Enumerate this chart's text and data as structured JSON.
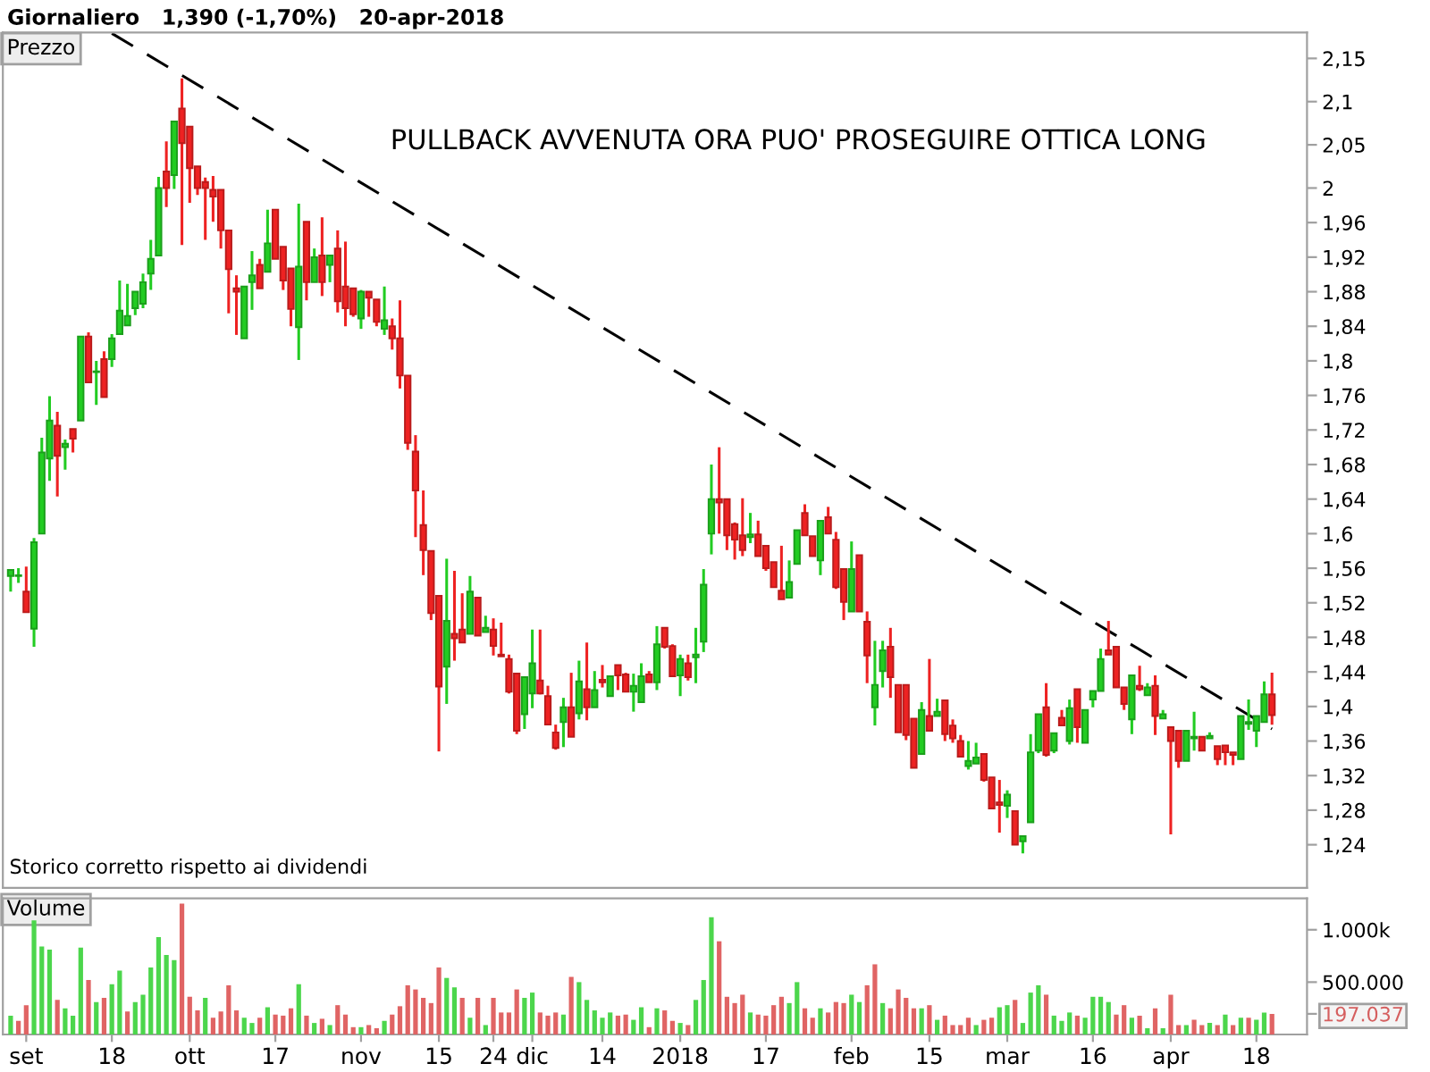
{
  "chart_data": [
    {
      "type": "candlestick",
      "title": "Giornaliero   1,390 (-1,70%)   20-apr-2018",
      "ylabel": "Prezzo",
      "tick_labels": "y",
      "annotations": [
        "PULLBACK AVVENUTA ORA PUO' PROSEGUIRE OTTICA LONG",
        "Storico corretto rispetto ai dividendi"
      ],
      "categories": [
        null,
        null,
        null,
        null,
        null,
        null,
        null,
        null,
        null,
        null,
        null,
        null,
        null,
        null,
        null,
        null,
        null,
        null,
        null,
        null,
        null,
        null,
        null,
        null,
        null,
        null,
        null,
        null,
        null,
        null,
        null,
        null,
        null,
        null,
        null,
        null,
        null,
        null,
        null,
        null,
        null,
        null,
        null,
        null,
        null,
        null,
        null,
        null,
        null,
        null,
        null,
        null,
        null,
        null,
        null,
        null,
        null,
        null,
        null,
        null,
        null,
        null,
        null,
        null,
        null,
        null,
        null,
        null,
        null,
        null,
        null,
        null,
        null,
        null,
        null,
        null,
        null,
        null,
        null,
        null,
        null,
        null,
        null,
        null,
        null,
        null,
        null,
        null,
        null,
        null,
        null,
        null,
        null,
        null,
        null,
        null,
        null,
        null,
        null,
        null,
        null,
        null,
        null,
        null,
        null,
        null,
        null,
        null,
        null,
        null,
        null,
        null,
        null,
        null,
        null,
        null,
        null,
        null,
        null,
        null,
        null,
        null,
        null,
        null,
        null,
        null,
        null,
        null,
        null,
        null,
        null,
        null,
        null,
        null,
        null,
        null,
        null,
        null,
        null,
        null,
        null,
        null,
        null,
        null,
        null,
        null,
        null,
        null,
        null,
        null,
        null,
        null,
        null,
        null,
        null,
        null,
        null,
        null,
        null,
        null,
        null,
        null,
        null
      ],
      "ylim": [
        1.19,
        2.18
      ],
      "yticks": [
        {
          "value": 1.24,
          "label": "1,24"
        },
        {
          "value": 1.28,
          "label": "1,28"
        },
        {
          "value": 1.32,
          "label": "1,32"
        },
        {
          "value": 1.36,
          "label": "1,36"
        },
        {
          "value": 1.4,
          "label": "1,4"
        },
        {
          "value": 1.44,
          "label": "1,44"
        },
        {
          "value": 1.48,
          "label": "1,48"
        },
        {
          "value": 1.52,
          "label": "1,52"
        },
        {
          "value": 1.56,
          "label": "1,56"
        },
        {
          "value": 1.6,
          "label": "1,6"
        },
        {
          "value": 1.64,
          "label": "1,64"
        },
        {
          "value": 1.68,
          "label": "1,68"
        },
        {
          "value": 1.72,
          "label": "1,72"
        },
        {
          "value": 1.76,
          "label": "1,76"
        },
        {
          "value": 1.8,
          "label": "1,8"
        },
        {
          "value": 1.84,
          "label": "1,84"
        },
        {
          "value": 1.88,
          "label": "1,88"
        },
        {
          "value": 1.92,
          "label": "1,92"
        },
        {
          "value": 1.96,
          "label": "1,96"
        },
        2,
        {
          "value": 2.05,
          "label": "2,05"
        },
        {
          "value": 2.1,
          "label": "2,1"
        },
        {
          "value": 2.15,
          "label": "2,15"
        }
      ],
      "series": [
        {
          "type": "candlestick",
          "colors": [
            "#22cc22",
            "#22cc22",
            "#ee2222",
            "#22cc22",
            "#22cc22",
            "#22cc22",
            "#ee2222",
            "#22cc22",
            "#ee2222",
            "#22cc22",
            "#ee2222",
            "#22cc22",
            "#ee2222",
            "#22cc22",
            "#22cc22",
            "#22cc22",
            "#22cc22",
            "#22cc22",
            "#22cc22",
            "#22cc22",
            "#ee2222",
            "#22cc22",
            "#ee2222",
            "#ee2222",
            "#ee2222",
            "#ee2222",
            "#ee2222",
            "#ee2222",
            "#ee2222",
            "#ee2222",
            "#22cc22",
            "#22cc22",
            "#ee2222",
            "#22cc22",
            "#ee2222",
            "#ee2222",
            "#ee2222",
            "#22cc22",
            "#ee2222",
            "#22cc22",
            "#ee2222",
            "#22cc22",
            "#ee2222",
            "#ee2222",
            "#ee2222",
            "#22cc22",
            "#ee2222",
            "#ee2222",
            "#22cc22",
            "#ee2222",
            "#ee2222",
            "#ee2222",
            "#ee2222",
            "#ee2222",
            "#ee2222",
            "#ee2222",
            "#22cc22",
            "#ee2222",
            "#ee2222",
            "#22cc22",
            "#ee2222",
            "#22cc22",
            "#ee2222",
            "#ee2222",
            "#ee2222",
            "#ee2222",
            "#22cc22",
            "#22cc22",
            "#ee2222",
            "#ee2222",
            "#ee2222",
            "#22cc22",
            "#ee2222",
            "#22cc22",
            "#ee2222",
            "#22cc22",
            "#ee2222",
            "#22cc22",
            "#ee2222",
            "#ee2222",
            "#22cc22",
            "#22cc22",
            "#ee2222",
            "#22cc22",
            "#ee2222",
            "#ee2222",
            "#22cc22",
            "#ee2222",
            "#22cc22",
            "#22cc22",
            "#22cc22",
            "#ee2222",
            "#ee2222",
            "#ee2222",
            "#ee2222",
            "#22cc22",
            "#ee2222",
            "#ee2222",
            "#ee2222",
            "#ee2222",
            "#22cc22",
            "#22cc22",
            "#ee2222",
            "#ee2222",
            "#22cc22",
            "#ee2222",
            "#ee2222",
            "#ee2222",
            "#22cc22",
            "#ee2222",
            "#ee2222",
            "#22cc22",
            "#22cc22",
            "#ee2222",
            "#ee2222",
            "#ee2222",
            "#ee2222",
            "#22cc22",
            "#ee2222",
            "#22cc22",
            "#ee2222",
            "#ee2222",
            "#ee2222",
            "#22cc22",
            "#22cc22",
            "#ee2222",
            "#ee2222",
            "#ee2222",
            "#22cc22",
            "#ee2222",
            "#22cc22",
            "#22cc22",
            "#22cc22",
            "#ee2222",
            "#22cc22",
            "#ee2222",
            "#22cc22",
            "#ee2222",
            "#22cc22",
            "#22cc22",
            "#22cc22",
            "#ee2222",
            "#ee2222",
            "#ee2222",
            "#22cc22",
            "#ee2222",
            "#22cc22",
            "#ee2222",
            "#22cc22",
            "#ee2222",
            "#ee2222",
            "#22cc22",
            "#22cc22",
            "#ee2222",
            "#22cc22",
            "#ee2222",
            "#ee2222",
            "#ee2222",
            "#22cc22",
            "#22cc22",
            "#22cc22",
            "#22cc22",
            "#ee2222"
          ],
          "ohlc": [
            [
              1.551,
              1.558,
              1.533,
              1.558
            ],
            [
              1.551,
              1.56,
              1.543,
              1.551
            ],
            [
              1.533,
              1.562,
              1.509,
              1.509
            ],
            [
              1.49,
              1.595,
              1.469,
              1.59
            ],
            [
              1.6,
              1.711,
              1.6,
              1.694
            ],
            [
              1.687,
              1.759,
              1.661,
              1.731
            ],
            [
              1.725,
              1.741,
              1.643,
              1.69
            ],
            [
              1.7,
              1.709,
              1.674,
              1.704
            ],
            [
              1.721,
              1.721,
              1.694,
              1.71
            ],
            [
              1.731,
              1.828,
              1.731,
              1.828
            ],
            [
              1.828,
              1.833,
              1.775,
              1.775
            ],
            [
              1.787,
              1.8,
              1.749,
              1.787
            ],
            [
              1.802,
              1.811,
              1.758,
              1.758
            ],
            [
              1.802,
              1.831,
              1.793,
              1.826
            ],
            [
              1.831,
              1.893,
              1.831,
              1.858
            ],
            [
              1.841,
              1.889,
              1.841,
              1.852
            ],
            [
              1.861,
              1.88,
              1.853,
              1.88
            ],
            [
              1.866,
              1.901,
              1.861,
              1.891
            ],
            [
              1.901,
              1.94,
              1.882,
              1.918
            ],
            [
              1.922,
              2.013,
              1.922,
              2.0
            ],
            [
              2.019,
              2.054,
              1.978,
              2.0
            ],
            [
              2.015,
              2.077,
              1.999,
              2.077
            ],
            [
              2.092,
              2.127,
              1.934,
              2.052
            ],
            [
              2.071,
              2.071,
              1.983,
              2.023
            ],
            [
              2.025,
              2.025,
              1.992,
              2.0
            ],
            [
              2.007,
              2.012,
              1.94,
              2.0
            ],
            [
              1.998,
              2.014,
              1.961,
              1.99
            ],
            [
              1.998,
              1.998,
              1.93,
              1.951
            ],
            [
              1.951,
              1.951,
              1.855,
              1.906
            ],
            [
              1.884,
              1.899,
              1.83,
              1.88
            ],
            [
              1.826,
              1.886,
              1.826,
              1.886
            ],
            [
              1.891,
              1.927,
              1.859,
              1.899
            ],
            [
              1.911,
              1.918,
              1.884,
              1.884
            ],
            [
              1.903,
              1.975,
              1.903,
              1.936
            ],
            [
              1.975,
              1.975,
              1.918,
              1.918
            ],
            [
              1.932,
              1.932,
              1.882,
              1.893
            ],
            [
              1.907,
              1.907,
              1.84,
              1.86
            ],
            [
              1.839,
              1.982,
              1.801,
              1.909
            ],
            [
              1.961,
              1.961,
              1.87,
              1.891
            ],
            [
              1.891,
              1.93,
              1.891,
              1.92
            ],
            [
              1.922,
              1.966,
              1.875,
              1.891
            ],
            [
              1.911,
              1.922,
              1.891,
              1.922
            ],
            [
              1.93,
              1.951,
              1.856,
              1.869
            ],
            [
              1.886,
              1.938,
              1.84,
              1.861
            ],
            [
              1.884,
              1.884,
              1.851,
              1.854
            ],
            [
              1.849,
              1.882,
              1.837,
              1.88
            ],
            [
              1.88,
              1.88,
              1.851,
              1.873
            ],
            [
              1.871,
              1.871,
              1.84,
              1.845
            ],
            [
              1.837,
              1.886,
              1.83,
              1.847
            ],
            [
              1.84,
              1.849,
              1.813,
              1.826
            ],
            [
              1.826,
              1.87,
              1.768,
              1.783
            ],
            [
              1.783,
              1.783,
              1.697,
              1.705
            ],
            [
              1.695,
              1.714,
              1.596,
              1.65
            ],
            [
              1.61,
              1.65,
              1.552,
              1.581
            ],
            [
              1.58,
              1.58,
              1.5,
              1.508
            ],
            [
              1.528,
              1.528,
              1.348,
              1.423
            ],
            [
              1.446,
              1.571,
              1.403,
              1.499
            ],
            [
              1.484,
              1.557,
              1.453,
              1.479
            ],
            [
              1.489,
              1.531,
              1.474,
              1.474
            ],
            [
              1.484,
              1.551,
              1.484,
              1.533
            ],
            [
              1.526,
              1.526,
              1.482,
              1.482
            ],
            [
              1.486,
              1.505,
              1.486,
              1.491
            ],
            [
              1.489,
              1.502,
              1.459,
              1.47
            ],
            [
              1.46,
              1.497,
              1.458,
              1.458
            ],
            [
              1.455,
              1.46,
              1.415,
              1.417
            ],
            [
              1.438,
              1.438,
              1.368,
              1.372
            ],
            [
              1.391,
              1.434,
              1.374,
              1.434
            ],
            [
              1.415,
              1.489,
              1.398,
              1.45
            ],
            [
              1.43,
              1.489,
              1.414,
              1.415
            ],
            [
              1.412,
              1.424,
              1.379,
              1.379
            ],
            [
              1.37,
              1.379,
              1.35,
              1.352
            ],
            [
              1.382,
              1.41,
              1.353,
              1.399
            ],
            [
              1.399,
              1.439,
              1.365,
              1.365
            ],
            [
              1.392,
              1.453,
              1.385,
              1.429
            ],
            [
              1.42,
              1.474,
              1.384,
              1.399
            ],
            [
              1.399,
              1.441,
              1.399,
              1.419
            ],
            [
              1.431,
              1.448,
              1.422,
              1.428
            ],
            [
              1.412,
              1.435,
              1.412,
              1.435
            ],
            [
              1.448,
              1.448,
              1.419,
              1.436
            ],
            [
              1.437,
              1.439,
              1.417,
              1.417
            ],
            [
              1.417,
              1.438,
              1.394,
              1.424
            ],
            [
              1.405,
              1.45,
              1.405,
              1.435
            ],
            [
              1.437,
              1.441,
              1.428,
              1.428
            ],
            [
              1.428,
              1.493,
              1.419,
              1.472
            ],
            [
              1.491,
              1.491,
              1.467,
              1.469
            ],
            [
              1.47,
              1.472,
              1.435,
              1.435
            ],
            [
              1.436,
              1.46,
              1.412,
              1.455
            ],
            [
              1.45,
              1.46,
              1.43,
              1.434
            ],
            [
              1.457,
              1.491,
              1.427,
              1.46
            ],
            [
              1.475,
              1.559,
              1.463,
              1.541
            ],
            [
              1.6,
              1.68,
              1.576,
              1.64
            ],
            [
              1.64,
              1.7,
              1.6,
              1.636
            ],
            [
              1.64,
              1.64,
              1.581,
              1.598
            ],
            [
              1.611,
              1.613,
              1.57,
              1.593
            ],
            [
              1.598,
              1.641,
              1.574,
              1.581
            ],
            [
              1.596,
              1.624,
              1.589,
              1.599
            ],
            [
              1.599,
              1.615,
              1.574,
              1.574
            ],
            [
              1.586,
              1.586,
              1.557,
              1.56
            ],
            [
              1.567,
              1.567,
              1.538,
              1.538
            ],
            [
              1.534,
              1.586,
              1.524,
              1.524
            ],
            [
              1.526,
              1.569,
              1.526,
              1.544
            ],
            [
              1.565,
              1.604,
              1.565,
              1.604
            ],
            [
              1.624,
              1.634,
              1.598,
              1.598
            ],
            [
              1.597,
              1.597,
              1.574,
              1.574
            ],
            [
              1.569,
              1.615,
              1.552,
              1.615
            ],
            [
              1.619,
              1.631,
              1.6,
              1.6
            ],
            [
              1.593,
              1.602,
              1.536,
              1.538
            ],
            [
              1.559,
              1.559,
              1.5,
              1.521
            ],
            [
              1.51,
              1.591,
              1.51,
              1.559
            ],
            [
              1.575,
              1.575,
              1.51,
              1.51
            ],
            [
              1.498,
              1.51,
              1.427,
              1.459
            ],
            [
              1.399,
              1.476,
              1.378,
              1.425
            ],
            [
              1.441,
              1.476,
              1.422,
              1.465
            ],
            [
              1.469,
              1.491,
              1.41,
              1.434
            ],
            [
              1.425,
              1.425,
              1.37,
              1.37
            ],
            [
              1.425,
              1.425,
              1.361,
              1.367
            ],
            [
              1.386,
              1.386,
              1.329,
              1.329
            ],
            [
              1.345,
              1.405,
              1.345,
              1.396
            ],
            [
              1.389,
              1.455,
              1.372,
              1.372
            ],
            [
              1.389,
              1.409,
              1.389,
              1.394
            ],
            [
              1.407,
              1.407,
              1.36,
              1.368
            ],
            [
              1.378,
              1.385,
              1.358,
              1.363
            ],
            [
              1.36,
              1.367,
              1.342,
              1.342
            ],
            [
              1.331,
              1.36,
              1.327,
              1.337
            ],
            [
              1.334,
              1.358,
              1.334,
              1.341
            ],
            [
              1.345,
              1.345,
              1.313,
              1.315
            ],
            [
              1.318,
              1.318,
              1.282,
              1.282
            ],
            [
              1.289,
              1.315,
              1.254,
              1.286
            ],
            [
              1.285,
              1.303,
              1.271,
              1.298
            ],
            [
              1.279,
              1.279,
              1.24,
              1.24
            ],
            [
              1.244,
              1.25,
              1.23,
              1.25
            ],
            [
              1.266,
              1.368,
              1.266,
              1.347
            ],
            [
              1.349,
              1.391,
              1.346,
              1.391
            ],
            [
              1.399,
              1.427,
              1.342,
              1.344
            ],
            [
              1.349,
              1.369,
              1.346,
              1.369
            ],
            [
              1.387,
              1.396,
              1.378,
              1.378
            ],
            [
              1.36,
              1.408,
              1.356,
              1.398
            ],
            [
              1.42,
              1.42,
              1.358,
              1.376
            ],
            [
              1.358,
              1.396,
              1.358,
              1.396
            ],
            [
              1.408,
              1.418,
              1.399,
              1.418
            ],
            [
              1.418,
              1.467,
              1.418,
              1.455
            ],
            [
              1.465,
              1.499,
              1.46,
              1.46
            ],
            [
              1.469,
              1.469,
              1.422,
              1.422
            ],
            [
              1.422,
              1.422,
              1.396,
              1.403
            ],
            [
              1.385,
              1.436,
              1.368,
              1.436
            ],
            [
              1.424,
              1.447,
              1.418,
              1.42
            ],
            [
              1.413,
              1.427,
              1.413,
              1.422
            ],
            [
              1.424,
              1.436,
              1.367,
              1.389
            ],
            [
              1.386,
              1.396,
              1.386,
              1.391
            ],
            [
              1.376,
              1.376,
              1.252,
              1.36
            ],
            [
              1.372,
              1.372,
              1.329,
              1.337
            ],
            [
              1.337,
              1.372,
              1.337,
              1.372
            ],
            [
              1.363,
              1.394,
              1.349,
              1.365
            ],
            [
              1.365,
              1.365,
              1.349,
              1.349
            ],
            [
              1.363,
              1.37,
              1.363,
              1.366
            ],
            [
              1.354,
              1.354,
              1.332,
              1.339
            ],
            [
              1.355,
              1.355,
              1.332,
              1.347
            ],
            [
              1.347,
              1.347,
              1.332,
              1.344
            ],
            [
              1.339,
              1.389,
              1.339,
              1.389
            ],
            [
              1.38,
              1.408,
              1.373,
              1.382
            ],
            [
              1.372,
              1.389,
              1.353,
              1.389
            ],
            [
              1.382,
              1.429,
              1.382,
              1.414
            ],
            [
              1.414,
              1.439,
              1.379,
              1.39
            ]
          ]
        },
        {
          "type": "line",
          "color": "#000000",
          "line_style": "dashed",
          "values": [
            null,
            null,
            null,
            null,
            null,
            null,
            null,
            null,
            null,
            null,
            null,
            null,
            null,
            2.179,
            null,
            null,
            null,
            null,
            null,
            null,
            null,
            null,
            null,
            null,
            null,
            null,
            null,
            null,
            null,
            null,
            null,
            null,
            null,
            null,
            null,
            null,
            null,
            null,
            null,
            null,
            null,
            null,
            null,
            null,
            null,
            null,
            null,
            null,
            null,
            null,
            null,
            null,
            null,
            null,
            null,
            null,
            null,
            null,
            null,
            null,
            null,
            null,
            null,
            null,
            null,
            null,
            null,
            null,
            null,
            null,
            null,
            null,
            null,
            null,
            null,
            null,
            null,
            null,
            null,
            null,
            null,
            null,
            null,
            null,
            null,
            null,
            null,
            null,
            null,
            null,
            null,
            null,
            null,
            null,
            null,
            null,
            null,
            null,
            null,
            null,
            null,
            null,
            null,
            null,
            null,
            null,
            null,
            null,
            null,
            null,
            null,
            null,
            null,
            null,
            null,
            null,
            null,
            null,
            null,
            null,
            null,
            null,
            null,
            null,
            null,
            null,
            null,
            null,
            null,
            null,
            null,
            null,
            null,
            null,
            null,
            null,
            null,
            null,
            null,
            null,
            null,
            null,
            null,
            null,
            null,
            null,
            null,
            null,
            null,
            null,
            null,
            null,
            null,
            null,
            null,
            null,
            null,
            null,
            null,
            null,
            null,
            null,
            1.374
          ]
        }
      ]
    },
    {
      "type": "bar",
      "ylabel": "Volume",
      "categories": [
        null,
        null,
        "set",
        null,
        null,
        null,
        null,
        null,
        null,
        null,
        null,
        null,
        null,
        "18",
        null,
        null,
        null,
        null,
        null,
        null,
        null,
        null,
        null,
        "ott",
        null,
        null,
        null,
        null,
        null,
        null,
        null,
        null,
        null,
        null,
        "17",
        null,
        null,
        null,
        null,
        null,
        null,
        null,
        null,
        null,
        null,
        "nov",
        null,
        null,
        null,
        null,
        null,
        null,
        null,
        null,
        null,
        "15",
        null,
        null,
        null,
        null,
        null,
        null,
        "24",
        null,
        null,
        null,
        null,
        "dic",
        null,
        null,
        null,
        null,
        null,
        null,
        null,
        null,
        "14",
        null,
        null,
        null,
        null,
        null,
        null,
        null,
        null,
        null,
        "2018",
        null,
        null,
        null,
        null,
        null,
        null,
        null,
        null,
        null,
        null,
        "17",
        null,
        null,
        null,
        null,
        null,
        null,
        null,
        null,
        null,
        null,
        "feb",
        null,
        null,
        null,
        null,
        null,
        null,
        null,
        null,
        null,
        "15",
        null,
        null,
        null,
        null,
        null,
        null,
        null,
        null,
        null,
        "mar",
        null,
        null,
        null,
        null,
        null,
        null,
        null,
        null,
        null,
        null,
        "16",
        null,
        null,
        null,
        null,
        null,
        null,
        null,
        null,
        null,
        "apr",
        null,
        null,
        null,
        null,
        null,
        null,
        null,
        null,
        null,
        null,
        "18",
        null,
        null
      ],
      "ylim": [
        0,
        1300000
      ],
      "yticks": [
        {
          "value": 197037,
          "label": "197.037"
        },
        {
          "value": 500000,
          "label": "500.000"
        },
        {
          "value": 1000000,
          "label": "1.000k"
        }
      ],
      "values": [
        180000,
        130000,
        280000,
        1090000,
        840000,
        810000,
        330000,
        250000,
        180000,
        830000,
        520000,
        310000,
        350000,
        480000,
        610000,
        220000,
        310000,
        380000,
        640000,
        930000,
        760000,
        710000,
        1250000,
        360000,
        230000,
        350000,
        160000,
        220000,
        470000,
        230000,
        160000,
        110000,
        160000,
        260000,
        190000,
        180000,
        250000,
        480000,
        180000,
        110000,
        150000,
        90000,
        280000,
        190000,
        70000,
        70000,
        90000,
        60000,
        130000,
        190000,
        270000,
        470000,
        430000,
        350000,
        300000,
        640000,
        540000,
        450000,
        350000,
        160000,
        350000,
        90000,
        350000,
        210000,
        210000,
        430000,
        350000,
        400000,
        210000,
        180000,
        210000,
        190000,
        550000,
        500000,
        330000,
        230000,
        160000,
        210000,
        180000,
        190000,
        140000,
        260000,
        70000,
        250000,
        230000,
        130000,
        110000,
        90000,
        330000,
        520000,
        1120000,
        890000,
        360000,
        300000,
        380000,
        210000,
        190000,
        180000,
        280000,
        360000,
        300000,
        500000,
        250000,
        160000,
        250000,
        210000,
        310000,
        300000,
        380000,
        310000,
        470000,
        670000,
        300000,
        250000,
        430000,
        350000,
        250000,
        250000,
        280000,
        140000,
        180000,
        90000,
        90000,
        160000,
        90000,
        140000,
        160000,
        260000,
        280000,
        330000,
        110000,
        400000,
        470000,
        380000,
        180000,
        130000,
        210000,
        180000,
        160000,
        360000,
        360000,
        310000,
        190000,
        280000,
        160000,
        180000,
        60000,
        250000,
        60000,
        380000,
        90000,
        90000,
        140000,
        90000,
        110000,
        90000,
        190000,
        90000,
        160000,
        160000,
        140000,
        210000,
        197037
      ],
      "colors": [
        "#4cd64c",
        "#e06464",
        "#e06464",
        "#4cd64c",
        "#4cd64c",
        "#4cd64c",
        "#e06464",
        "#4cd64c",
        "#4cd64c",
        "#4cd64c",
        "#e06464",
        "#4cd64c",
        "#e06464",
        "#4cd64c",
        "#4cd64c",
        "#e06464",
        "#4cd64c",
        "#4cd64c",
        "#4cd64c",
        "#4cd64c",
        "#4cd64c",
        "#4cd64c",
        "#e06464",
        "#e06464",
        "#e06464",
        "#4cd64c",
        "#e06464",
        "#e06464",
        "#e06464",
        "#e06464",
        "#4cd64c",
        "#4cd64c",
        "#e06464",
        "#4cd64c",
        "#e06464",
        "#e06464",
        "#e06464",
        "#4cd64c",
        "#e06464",
        "#4cd64c",
        "#e06464",
        "#4cd64c",
        "#e06464",
        "#e06464",
        "#e06464",
        "#4cd64c",
        "#e06464",
        "#e06464",
        "#4cd64c",
        "#e06464",
        "#e06464",
        "#e06464",
        "#e06464",
        "#e06464",
        "#e06464",
        "#e06464",
        "#4cd64c",
        "#4cd64c",
        "#e06464",
        "#4cd64c",
        "#e06464",
        "#4cd64c",
        "#e06464",
        "#e06464",
        "#e06464",
        "#e06464",
        "#4cd64c",
        "#4cd64c",
        "#e06464",
        "#e06464",
        "#e06464",
        "#4cd64c",
        "#e06464",
        "#4cd64c",
        "#4cd64c",
        "#4cd64c",
        "#4cd64c",
        "#4cd64c",
        "#e06464",
        "#e06464",
        "#4cd64c",
        "#4cd64c",
        "#e06464",
        "#4cd64c",
        "#e06464",
        "#e06464",
        "#4cd64c",
        "#e06464",
        "#4cd64c",
        "#4cd64c",
        "#4cd64c",
        "#e06464",
        "#e06464",
        "#e06464",
        "#e06464",
        "#4cd64c",
        "#e06464",
        "#e06464",
        "#e06464",
        "#e06464",
        "#4cd64c",
        "#4cd64c",
        "#e06464",
        "#e06464",
        "#4cd64c",
        "#e06464",
        "#e06464",
        "#e06464",
        "#4cd64c",
        "#4cd64c",
        "#e06464",
        "#e06464",
        "#4cd64c",
        "#e06464",
        "#e06464",
        "#e06464",
        "#e06464",
        "#4cd64c",
        "#e06464",
        "#4cd64c",
        "#e06464",
        "#e06464",
        "#e06464",
        "#e06464",
        "#4cd64c",
        "#e06464",
        "#e06464",
        "#4cd64c",
        "#4cd64c",
        "#e06464",
        "#4cd64c",
        "#4cd64c",
        "#4cd64c",
        "#e06464",
        "#4cd64c",
        "#4cd64c",
        "#4cd64c",
        "#e06464",
        "#4cd64c",
        "#4cd64c",
        "#4cd64c",
        "#4cd64c",
        "#e06464",
        "#e06464",
        "#4cd64c",
        "#e06464",
        "#4cd64c",
        "#e06464",
        "#4cd64c",
        "#e06464",
        "#e06464",
        "#4cd64c",
        "#e06464",
        "#e06464",
        "#4cd64c",
        "#e06464",
        "#4cd64c",
        "#e06464",
        "#4cd64c",
        "#e06464",
        "#4cd64c",
        "#4cd64c",
        "#e06464"
      ]
    }
  ]
}
